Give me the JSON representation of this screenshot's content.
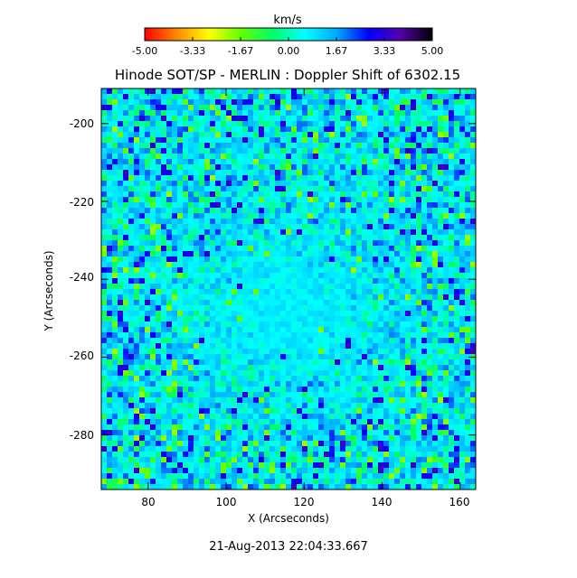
{
  "colorbar": {
    "unit_label": "km/s",
    "min": -5.0,
    "max": 5.0,
    "tick_labels": [
      "-5.00",
      "-3.33",
      "-1.67",
      "0.00",
      "1.67",
      "3.33",
      "5.00"
    ],
    "colors": [
      "#ff0000",
      "#ff8800",
      "#ffff00",
      "#66ff00",
      "#00ff66",
      "#00ffff",
      "#00aaff",
      "#0000ff",
      "#5500aa",
      "#000000"
    ]
  },
  "chart_data": {
    "type": "heatmap",
    "title": "Hinode SOT/SP - MERLIN : Doppler Shift of 6302.15",
    "xlabel": "X (Arcseconds)",
    "ylabel": "Y (Arcseconds)",
    "xlim": [
      68,
      164
    ],
    "ylim": [
      -294,
      -191
    ],
    "x_ticks": [
      80,
      100,
      120,
      140,
      160
    ],
    "y_ticks": [
      -200,
      -220,
      -240,
      -260,
      -280
    ],
    "value_unit": "km/s",
    "value_range": [
      -5.0,
      5.0
    ],
    "dominant_values_km_s": [
      0.0,
      1.67
    ],
    "feature": "calm centered region near X=115, Y=-247 with values near 0.8 km/s; mottled surroundings mixing green, yellow and blue"
  },
  "timestamp": "21-Aug-2013 22:04:33.667"
}
